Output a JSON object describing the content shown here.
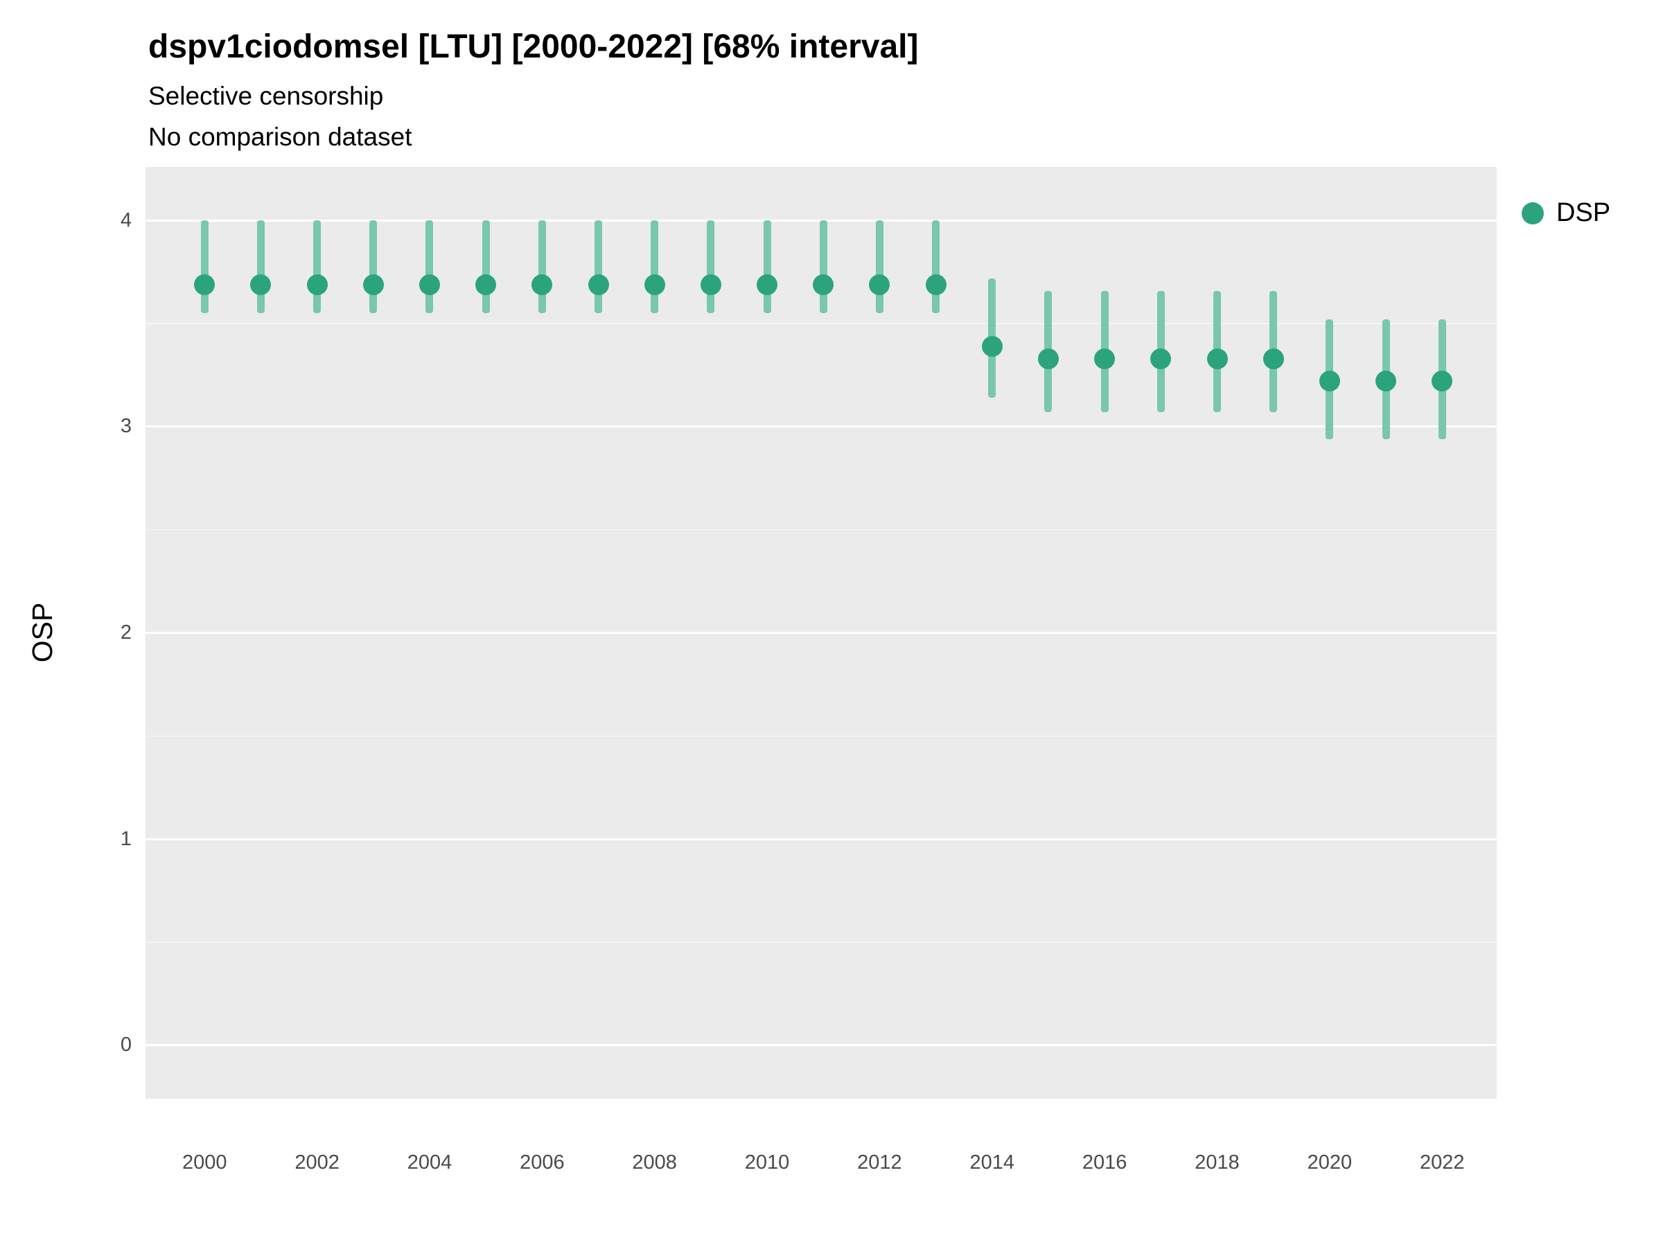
{
  "header": {
    "title": "dspv1ciodomsel [LTU] [2000-2022] [68% interval]",
    "subtitle1": "Selective censorship",
    "subtitle2": "No comparison dataset"
  },
  "legend": {
    "label": "DSP"
  },
  "axes": {
    "y_label": "OSP",
    "y_ticks": [
      4,
      3,
      2,
      1,
      0
    ],
    "x_ticks": [
      2000,
      2002,
      2004,
      2006,
      2008,
      2010,
      2012,
      2014,
      2016,
      2018,
      2020,
      2022
    ]
  },
  "chart_data": {
    "type": "scatter",
    "title": "dspv1ciodomsel [LTU] [2000-2022] [68% interval]",
    "subtitle": [
      "Selective censorship",
      "No comparison dataset"
    ],
    "xlabel": "",
    "ylabel": "OSP",
    "ylim": [
      -0.26,
      4.26
    ],
    "xlim": [
      1998.95,
      2022.97
    ],
    "grid": "on",
    "legend_position": "right",
    "x": [
      2000,
      2001,
      2002,
      2003,
      2004,
      2005,
      2006,
      2007,
      2008,
      2009,
      2010,
      2011,
      2012,
      2013,
      2014,
      2015,
      2016,
      2017,
      2018,
      2019,
      2020,
      2021,
      2022
    ],
    "series": [
      {
        "name": "DSP",
        "values": [
          3.69,
          3.69,
          3.69,
          3.69,
          3.69,
          3.69,
          3.69,
          3.69,
          3.69,
          3.69,
          3.69,
          3.69,
          3.69,
          3.69,
          3.39,
          3.33,
          3.33,
          3.33,
          3.33,
          3.33,
          3.22,
          3.22,
          3.22
        ],
        "lower": [
          3.55,
          3.55,
          3.55,
          3.55,
          3.55,
          3.55,
          3.55,
          3.55,
          3.55,
          3.55,
          3.55,
          3.55,
          3.55,
          3.55,
          3.14,
          3.07,
          3.07,
          3.07,
          3.07,
          3.07,
          2.94,
          2.94,
          2.94
        ],
        "upper": [
          4.0,
          4.0,
          4.0,
          4.0,
          4.0,
          4.0,
          4.0,
          4.0,
          4.0,
          4.0,
          4.0,
          4.0,
          4.0,
          4.0,
          3.72,
          3.66,
          3.66,
          3.66,
          3.66,
          3.66,
          3.52,
          3.52,
          3.52
        ]
      }
    ],
    "interval_label": "68% interval",
    "colors": {
      "point": "#2BA47E",
      "interval": "#79C7AD",
      "panel_bg": "#EBEBEB",
      "gridline": "#FFFFFF"
    }
  }
}
